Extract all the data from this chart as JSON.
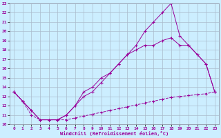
{
  "xlabel": "Windchill (Refroidissement éolien,°C)",
  "background_color": "#cceeff",
  "grid_color": "#aabbcc",
  "line_color": "#990099",
  "xlim": [
    -0.5,
    23.5
  ],
  "ylim": [
    10,
    23
  ],
  "xticks": [
    0,
    1,
    2,
    3,
    4,
    5,
    6,
    7,
    8,
    9,
    10,
    11,
    12,
    13,
    14,
    15,
    16,
    17,
    18,
    19,
    20,
    21,
    22,
    23
  ],
  "yticks": [
    10,
    11,
    12,
    13,
    14,
    15,
    16,
    17,
    18,
    19,
    20,
    21,
    22,
    23
  ],
  "line1_x": [
    0,
    1,
    2,
    3,
    4,
    5,
    6,
    7,
    8,
    9,
    10,
    11,
    12,
    13,
    14,
    15,
    16,
    17,
    18,
    19,
    20,
    21,
    22,
    23
  ],
  "line1_y": [
    13.5,
    12.5,
    11.5,
    10.5,
    10.5,
    10.5,
    11.0,
    12.0,
    13.5,
    14.0,
    15.0,
    15.5,
    16.5,
    17.5,
    18.0,
    18.5,
    18.5,
    19.0,
    19.3,
    18.5,
    18.5,
    17.5,
    16.5,
    13.5
  ],
  "line2_x": [
    0,
    1,
    2,
    3,
    4,
    5,
    6,
    7,
    8,
    9,
    10,
    11,
    12,
    13,
    14,
    15,
    16,
    17,
    18,
    19,
    20,
    21,
    22,
    23
  ],
  "line2_y": [
    13.5,
    12.5,
    11.5,
    10.5,
    10.5,
    10.5,
    11.0,
    12.0,
    13.0,
    13.5,
    14.5,
    15.5,
    16.5,
    17.5,
    18.5,
    20.0,
    21.0,
    22.0,
    23.0,
    19.5,
    18.5,
    17.5,
    16.5,
    13.5
  ],
  "line3_x": [
    0,
    1,
    2,
    3,
    4,
    5,
    6,
    7,
    8,
    9,
    10,
    11,
    12,
    13,
    14,
    15,
    16,
    17,
    18,
    19,
    20,
    21,
    22,
    23
  ],
  "line3_y": [
    13.5,
    12.5,
    11.0,
    10.5,
    10.5,
    10.5,
    10.5,
    10.7,
    10.9,
    11.1,
    11.3,
    11.5,
    11.7,
    11.9,
    12.1,
    12.3,
    12.5,
    12.7,
    12.9,
    13.0,
    13.1,
    13.2,
    13.3,
    13.5
  ]
}
